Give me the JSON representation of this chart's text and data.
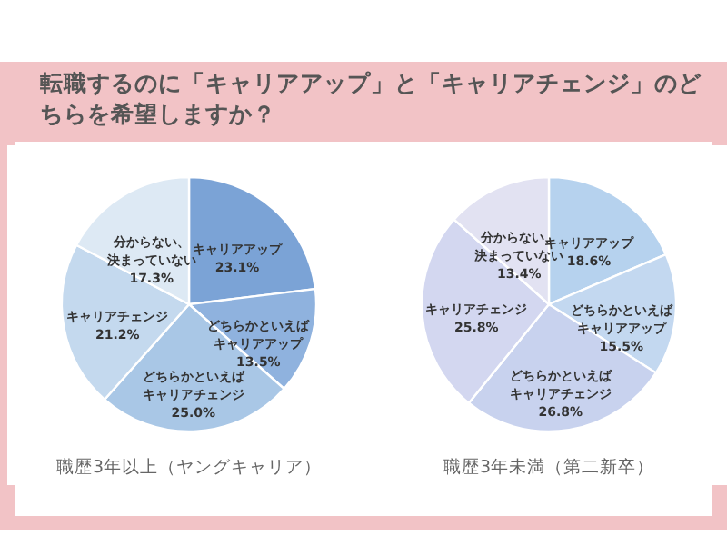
{
  "chart_data": [
    {
      "type": "pie",
      "title": "転職するのに「キャリアアップ」と「キャリアチェンジ」のどちらを希望しますか？",
      "xlabel": "職歴3年以上（ヤングキャリア）",
      "categories": [
        "キャリアアップ",
        "どちらかといえばキャリアアップ",
        "どちらかといえばキャリアチェンジ",
        "キャリアチェンジ",
        "分からない、決まっていない"
      ],
      "values": [
        23.1,
        13.5,
        25.0,
        21.2,
        17.3
      ],
      "value_labels": [
        "23.1%",
        "13.5%",
        "25.0%",
        "21.2%",
        "17.3%"
      ],
      "colors": [
        "#7ba3d6",
        "#8fb2de",
        "#a9c7e6",
        "#c4d9ee",
        "#dde9f4"
      ]
    },
    {
      "type": "pie",
      "xlabel": "職歴3年未満（第二新卒）",
      "categories": [
        "キャリアアップ",
        "どちらかといえばキャリアアップ",
        "どちらかといえばキャリアチェンジ",
        "キャリアチェンジ",
        "分からない、決まっていない"
      ],
      "values": [
        18.6,
        15.5,
        26.8,
        25.8,
        13.4
      ],
      "value_labels": [
        "18.6%",
        "15.5%",
        "26.8%",
        "25.8%",
        "13.4%"
      ],
      "colors": [
        "#b6d2ee",
        "#c3d8f0",
        "#c8d2ee",
        "#d3d7f0",
        "#e2e2f2"
      ]
    }
  ]
}
